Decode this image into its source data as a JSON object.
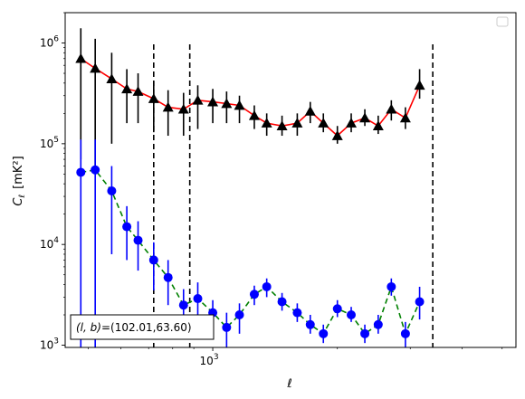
{
  "chart_data": {
    "type": "scatter",
    "x_scale": "log",
    "y_scale": "log",
    "xlabel": "ℓ",
    "ylabel_main": "C",
    "ylabel_sub": "ℓ",
    "ylabel_unit": "[mK²]",
    "xlim": [
      440,
      5400
    ],
    "ylim": [
      950,
      2000000
    ],
    "x_major_ticks": [
      {
        "value": 1000,
        "base": "10",
        "exp": "3"
      }
    ],
    "y_major_ticks": [
      {
        "value": 1000,
        "base": "10",
        "exp": "3"
      },
      {
        "value": 10000,
        "base": "10",
        "exp": "4"
      },
      {
        "value": 100000,
        "base": "10",
        "exp": "5"
      },
      {
        "value": 1000000,
        "base": "10",
        "exp": "6"
      }
    ],
    "legend": {
      "placement": "top-right",
      "entries": []
    },
    "annotation": "(l, b)=(102.01,63.60)",
    "annotation_parts": {
      "lhs": "(l, b)",
      "rhs": "=(102.01,63.60)"
    },
    "vlines": [
      720,
      880,
      3400
    ],
    "series": [
      {
        "marker": "triangle",
        "marker_color": "#000000",
        "errorbar_color": "#000000",
        "line_color": "#ff0000",
        "line_style": "solid",
        "x": [
          480,
          520,
          570,
          620,
          660,
          720,
          780,
          850,
          920,
          1000,
          1080,
          1160,
          1260,
          1350,
          1470,
          1600,
          1720,
          1850,
          2000,
          2160,
          2330,
          2510,
          2700,
          2920,
          3160,
          3400,
          3690,
          3990
        ],
        "y": [
          700000,
          560000,
          440000,
          350000,
          330000,
          280000,
          230000,
          220000,
          270000,
          260000,
          250000,
          240000,
          190000,
          160000,
          150000,
          160000,
          210000,
          160000,
          120000,
          160000,
          180000,
          150000,
          220000,
          180000,
          380000,
          0,
          0,
          0
        ],
        "yerr_low": [
          70000,
          56000,
          100000,
          160000,
          160000,
          130000,
          120000,
          120000,
          140000,
          160000,
          160000,
          160000,
          140000,
          120000,
          120000,
          120000,
          160000,
          130000,
          100000,
          130000,
          150000,
          125000,
          170000,
          140000,
          280000,
          0,
          0,
          0
        ],
        "yerr_high": [
          1400000,
          1100000,
          800000,
          550000,
          500000,
          420000,
          340000,
          320000,
          380000,
          350000,
          330000,
          300000,
          240000,
          200000,
          190000,
          200000,
          260000,
          200000,
          150000,
          200000,
          220000,
          190000,
          270000,
          230000,
          550000,
          0,
          0,
          0
        ]
      },
      {
        "marker": "circle",
        "marker_color": "#0000ff",
        "errorbar_color": "#0000ff",
        "line_color": "#008000",
        "line_style": "dashed",
        "x": [
          480,
          520,
          570,
          620,
          660,
          720,
          780,
          850,
          920,
          1000,
          1080,
          1160,
          1260,
          1350,
          1470,
          1600,
          1720,
          1850,
          2000,
          2160,
          2330,
          2510,
          2700,
          2920,
          3160,
          3400,
          3690,
          3990
        ],
        "y": [
          52000,
          55000,
          34000,
          15000,
          11000,
          7000,
          4700,
          2500,
          2900,
          2100,
          1500,
          2000,
          3200,
          3800,
          2700,
          2100,
          1600,
          1300,
          2300,
          2000,
          1300,
          1600,
          3800,
          1300,
          2700,
          0,
          0,
          0
        ],
        "yerr_low": [
          950,
          950,
          8000,
          7000,
          5500,
          3500,
          2500,
          1300,
          1500,
          1300,
          950,
          1300,
          2500,
          3000,
          2200,
          1700,
          1300,
          1050,
          1900,
          1700,
          1050,
          1300,
          3100,
          950,
          1800,
          0,
          0,
          0
        ],
        "yerr_high": [
          110000,
          110000,
          60000,
          24000,
          17000,
          10500,
          7000,
          3600,
          4200,
          2800,
          2100,
          2600,
          3900,
          4600,
          3300,
          2600,
          2000,
          1600,
          2800,
          2400,
          1600,
          2000,
          4600,
          1700,
          3800,
          0,
          0,
          0
        ]
      }
    ]
  }
}
